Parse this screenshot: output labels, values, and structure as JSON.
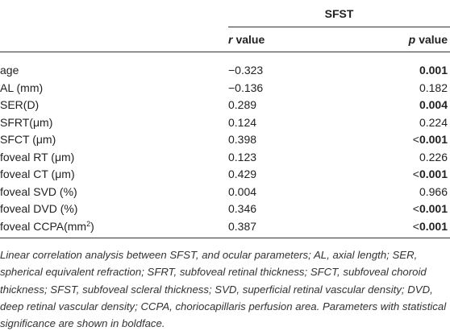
{
  "table": {
    "group_header": "SFST",
    "col_r": {
      "var": "r",
      "rest": "value"
    },
    "col_p": {
      "var": "p",
      "rest": "value"
    },
    "rows": [
      {
        "label": "age",
        "r": "−0.323",
        "p": {
          "text": "0.001",
          "bold": true
        }
      },
      {
        "label": "AL (mm)",
        "r": "−0.136",
        "p": {
          "text": "0.182",
          "bold": false
        }
      },
      {
        "label": "SER(D)",
        "r": "0.289",
        "p": {
          "text": "0.004",
          "bold": true
        }
      },
      {
        "label": "SFRT(μm)",
        "r": "0.124",
        "p": {
          "text": "0.224",
          "bold": false
        }
      },
      {
        "label": "SFCT (μm)",
        "r": "0.398",
        "p": {
          "prefix": "<",
          "text": "0.001",
          "bold": true
        }
      },
      {
        "label": "foveal RT (μm)",
        "r": "0.123",
        "p": {
          "text": "0.226",
          "bold": false
        }
      },
      {
        "label": "foveal CT (μm)",
        "r": "0.429",
        "p": {
          "prefix": "<",
          "text": "0.001",
          "bold": true
        }
      },
      {
        "label": "foveal SVD (%)",
        "r": "0.004",
        "p": {
          "text": "0.966",
          "bold": false
        }
      },
      {
        "label": "foveal DVD (%)",
        "r": "0.346",
        "p": {
          "prefix": "<",
          "text": "0.001",
          "bold": true
        }
      },
      {
        "label": "foveal CCPA(mm",
        "label_sup": "2",
        "label_end": ")",
        "r": "0.387",
        "p": {
          "prefix": "<",
          "text": "0.001",
          "bold": true
        }
      }
    ],
    "footnote": "Linear correlation analysis between SFST, and ocular parameters; AL, axial length; SER, spherical equivalent refraction; SFRT, subfoveal retinal thickness; SFCT, subfoveal choroid thickness; SFST, subfoveal scleral thickness; SVD, superficial retinal vascular density; DVD, deep retinal vascular density; CCPA, choriocapillaris perfusion area. Parameters with statistical significance are shown in boldface."
  }
}
